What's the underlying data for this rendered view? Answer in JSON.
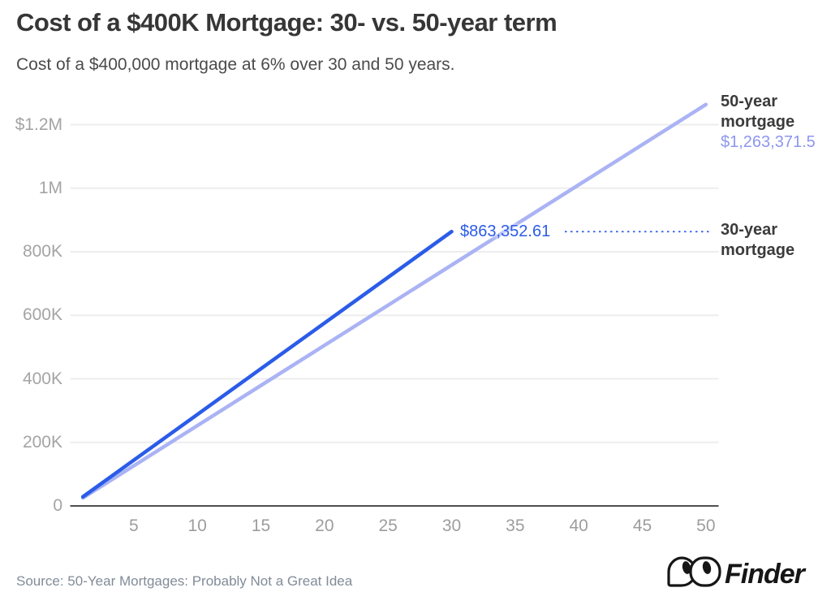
{
  "header": {
    "title": "Cost of a $400K Mortgage: 30- vs. 50-year term",
    "subtitle": "Cost of a $400,000 mortgage at 6% over 30 and 50 years."
  },
  "chart_data": {
    "type": "line",
    "title": "Cost of a $400K Mortgage: 30- vs. 50-year term",
    "subtitle": "Cost of a $400,000 mortgage at 6% over 30 and 50 years.",
    "xlabel": "",
    "ylabel": "",
    "grid": true,
    "xlim": [
      0,
      51
    ],
    "ylim": [
      0,
      1300000
    ],
    "x_ticks": [
      5,
      10,
      15,
      20,
      25,
      30,
      35,
      40,
      45,
      50
    ],
    "y_ticks": [
      {
        "label": "$1.2M",
        "value": 1200000
      },
      {
        "label": "1M",
        "value": 1000000
      },
      {
        "label": "800K",
        "value": 800000
      },
      {
        "label": "600K",
        "value": 600000
      },
      {
        "label": "400K",
        "value": 400000
      },
      {
        "label": "200K",
        "value": 200000
      },
      {
        "label": "0",
        "value": 0
      }
    ],
    "series": [
      {
        "name": "30-year mortgage",
        "color": "#2b5ce8",
        "annotation_color": "#2b5ce8",
        "annotation_value": "$863,352.61",
        "x": [
          1,
          5,
          10,
          15,
          20,
          25,
          30
        ],
        "y": [
          28778.42,
          143892.1,
          287784.2,
          431676.31,
          575568.41,
          719460.51,
          863352.61
        ]
      },
      {
        "name": "50-year mortgage",
        "color": "#aab3f4",
        "annotation_color": "#8d97ef",
        "annotation_value": "$1,263,371.5",
        "x": [
          1,
          5,
          10,
          15,
          20,
          25,
          30,
          35,
          40,
          45,
          50
        ],
        "y": [
          25267.43,
          126337.15,
          252674.3,
          379011.45,
          505348.6,
          631685.75,
          758022.9,
          884360.05,
          1010697.2,
          1137034.35,
          1263371.5
        ]
      }
    ],
    "colors": {
      "gridline": "#ededed",
      "axis": "#4f4f4f",
      "tick_label": "#a4a4a4"
    }
  },
  "footer": {
    "source": "Source: 50-Year Mortgages: Probably Not a Great Idea",
    "brand": "Finder"
  }
}
